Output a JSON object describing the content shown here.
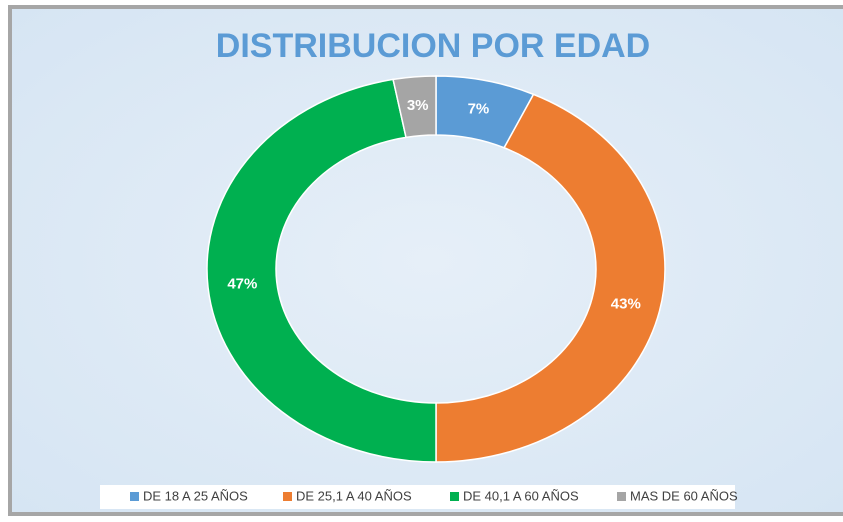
{
  "chart_data": {
    "type": "donut",
    "title": "DISTRIBUCION POR EDAD",
    "categories": [
      "DE 18 A 25 AÑOS",
      "DE 25,1 A 40 AÑOS",
      "DE 40,1 A 60 AÑOS",
      "MAS DE 60 AÑOS"
    ],
    "values": [
      7,
      43,
      47,
      3
    ],
    "value_labels": [
      "7%",
      "43%",
      "47%",
      "3%"
    ],
    "colors": [
      "#5b9bd5",
      "#ed7d31",
      "#00b050",
      "#a5a5a5"
    ],
    "legend": "bottom"
  }
}
